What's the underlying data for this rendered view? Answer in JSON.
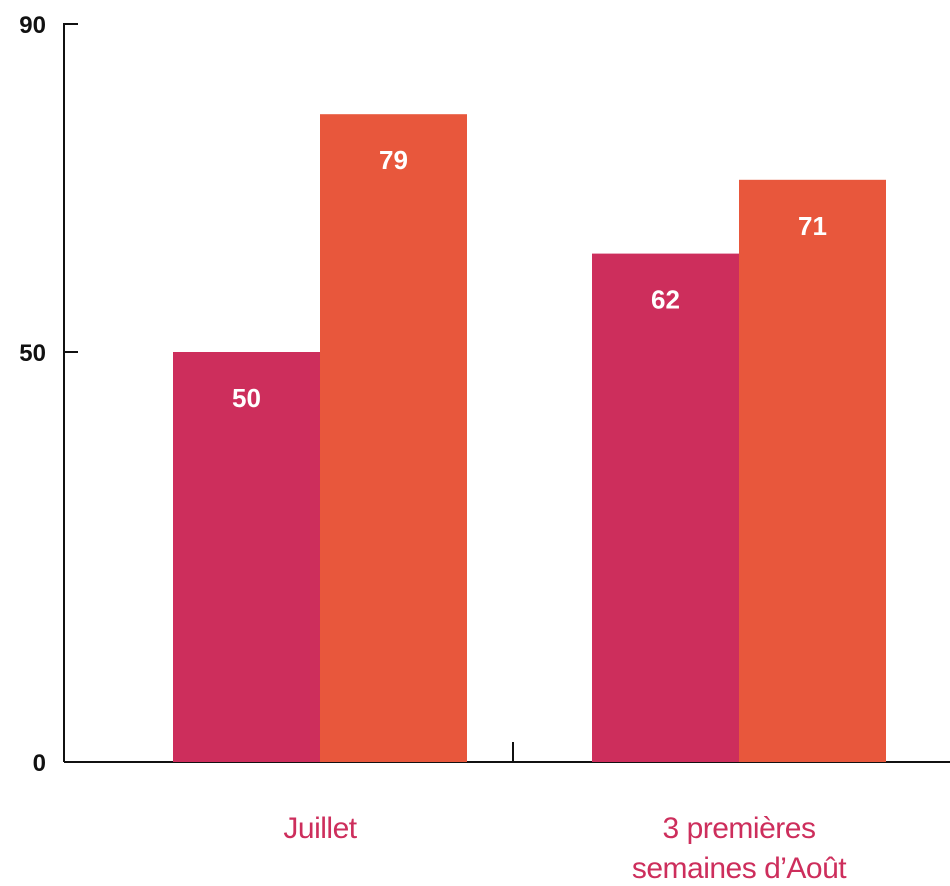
{
  "chart_data": {
    "type": "bar",
    "categories": [
      "Juillet",
      "3 premières semaines d’Août"
    ],
    "category_lines": [
      [
        "Juillet"
      ],
      [
        "3 premières",
        "semaines d’Août"
      ]
    ],
    "series": [
      {
        "values": [
          50,
          62
        ],
        "color": "#cd2e5c"
      },
      {
        "values": [
          79,
          71
        ],
        "color": "#e8573c"
      }
    ],
    "yticks": [
      0,
      50,
      90
    ],
    "ylim": [
      0,
      90
    ],
    "title": "",
    "xlabel": "",
    "ylabel": "",
    "grid": false,
    "category_label_color": "#cd2e5c"
  }
}
